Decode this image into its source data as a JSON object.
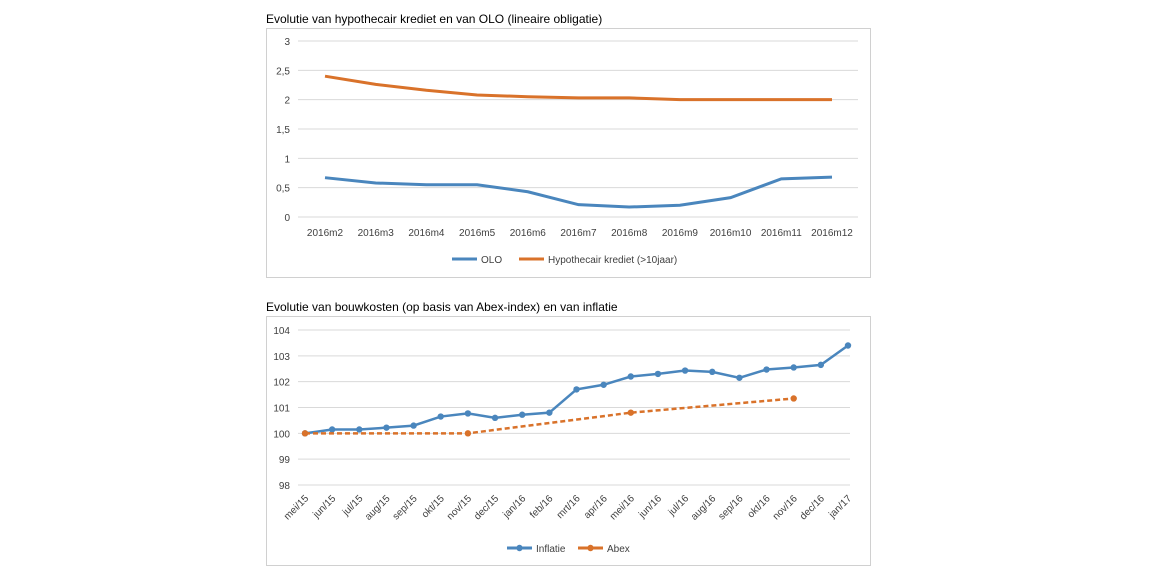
{
  "chart_data": [
    {
      "type": "line",
      "title": "Evolutie van hypothecair krediet en van OLO (lineaire obligatie)",
      "categories": [
        "2016m2",
        "2016m3",
        "2016m4",
        "2016m5",
        "2016m6",
        "2016m7",
        "2016m8",
        "2016m9",
        "2016m10",
        "2016m11",
        "2016m12"
      ],
      "yticks": [
        "0",
        "0,5",
        "1",
        "1,5",
        "2",
        "2,5",
        "3"
      ],
      "ylim": [
        0,
        3
      ],
      "grid": true,
      "legend": "bottom",
      "series": [
        {
          "name": "OLO",
          "color": "#4a86bd",
          "values": [
            0.67,
            0.58,
            0.55,
            0.55,
            0.43,
            0.21,
            0.17,
            0.2,
            0.33,
            0.65,
            0.68
          ]
        },
        {
          "name": "Hypothecair krediet (>10jaar)",
          "color": "#d9722a",
          "values": [
            2.4,
            2.26,
            2.16,
            2.08,
            2.05,
            2.03,
            2.03,
            2.0,
            2.0,
            2.0,
            2.0
          ]
        }
      ]
    },
    {
      "type": "line",
      "title": "Evolutie van bouwkosten (op basis van Abex-index) en van inflatie",
      "categories": [
        "mei/15",
        "jun/15",
        "jul/15",
        "aug/15",
        "sep/15",
        "okt/15",
        "nov/15",
        "dec/15",
        "jan/16",
        "feb/16",
        "mrt/16",
        "apr/16",
        "mei/16",
        "jun/16",
        "jul/16",
        "aug/16",
        "sep/16",
        "okt/16",
        "nov/16",
        "dec/16",
        "jan/17"
      ],
      "yticks": [
        "98",
        "99",
        "100",
        "101",
        "102",
        "103",
        "104"
      ],
      "ylim": [
        98,
        104
      ],
      "grid": true,
      "legend": "bottom",
      "series": [
        {
          "name": "Inflatie",
          "color": "#4a86bd",
          "values": [
            100,
            100.15,
            100.15,
            100.22,
            100.3,
            100.65,
            100.77,
            100.6,
            100.72,
            100.8,
            101.7,
            101.88,
            102.2,
            102.3,
            102.43,
            102.38,
            102.15,
            102.47,
            102.55,
            102.65,
            103.4
          ]
        },
        {
          "name": "Abex",
          "color": "#d9722a",
          "values": [
            100,
            null,
            null,
            null,
            null,
            null,
            100,
            null,
            null,
            null,
            null,
            null,
            100.8,
            null,
            null,
            null,
            null,
            null,
            101.35,
            null,
            null
          ]
        }
      ]
    }
  ]
}
